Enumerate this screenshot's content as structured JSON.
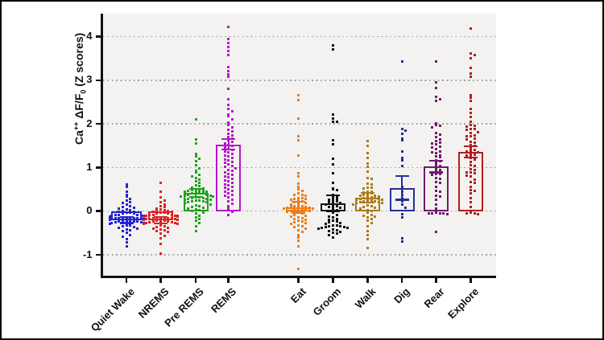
{
  "figure": {
    "background": "#ffffff",
    "border_color": "#000000",
    "plot_background": "#f4f2f0",
    "grid_color": "#9e9e9e",
    "axis_color": "#111111"
  },
  "axis": {
    "ylabel_base1": "Ca",
    "ylabel_sup": "++",
    "ylabel_base2": " ΔF/F",
    "ylabel_sub": "0",
    "ylabel_base3": " (Z scores)"
  },
  "chart_data": {
    "type": "scatter",
    "subtype": "beeswarm dot plot with mean bars and SEM error bars",
    "ylabel": "Ca++ dF/F0 (Z scores)",
    "xlabel": "",
    "title": "",
    "ylim": [
      -1.5,
      4.55
    ],
    "yticks": [
      -1,
      0,
      1,
      2,
      3,
      4
    ],
    "grid": "dotted horizontal gridlines at each integer",
    "legend": "none",
    "group_gap_after_index": 3,
    "groups": [
      {
        "label": "Quiet Wake",
        "color": "#2323d6",
        "mean": -0.2,
        "sem": 0.07,
        "points": [
          0.62,
          0.55,
          0.45,
          0.38,
          0.33,
          0.28,
          0.24,
          0.21,
          0.18,
          0.15,
          0.12,
          0.1,
          0.08,
          0.06,
          0.04,
          0.02,
          0.0,
          -0.02,
          -0.02,
          -0.04,
          -0.04,
          -0.06,
          -0.06,
          -0.08,
          -0.08,
          -0.08,
          -0.1,
          -0.1,
          -0.1,
          -0.12,
          -0.12,
          -0.12,
          -0.14,
          -0.14,
          -0.14,
          -0.16,
          -0.16,
          -0.16,
          -0.16,
          -0.18,
          -0.18,
          -0.18,
          -0.18,
          -0.2,
          -0.2,
          -0.2,
          -0.22,
          -0.22,
          -0.22,
          -0.24,
          -0.24,
          -0.24,
          -0.26,
          -0.26,
          -0.28,
          -0.28,
          -0.3,
          -0.3,
          -0.32,
          -0.32,
          -0.34,
          -0.36,
          -0.38,
          -0.4,
          -0.42,
          -0.44,
          -0.46,
          -0.5,
          -0.54,
          -0.58,
          -0.64,
          -0.72,
          -0.8
        ]
      },
      {
        "label": "NREMS",
        "color": "#dd2222",
        "mean": -0.21,
        "sem": 0.07,
        "points": [
          0.65,
          0.45,
          0.32,
          0.25,
          0.2,
          0.16,
          0.12,
          0.09,
          0.06,
          0.04,
          0.02,
          0.0,
          0.0,
          -0.02,
          -0.02,
          -0.04,
          -0.04,
          -0.06,
          -0.06,
          -0.08,
          -0.08,
          -0.08,
          -0.1,
          -0.1,
          -0.1,
          -0.12,
          -0.12,
          -0.12,
          -0.14,
          -0.14,
          -0.14,
          -0.16,
          -0.16,
          -0.16,
          -0.18,
          -0.18,
          -0.18,
          -0.2,
          -0.2,
          -0.2,
          -0.22,
          -0.22,
          -0.22,
          -0.24,
          -0.24,
          -0.26,
          -0.26,
          -0.28,
          -0.28,
          -0.3,
          -0.3,
          -0.32,
          -0.34,
          -0.36,
          -0.38,
          -0.4,
          -0.42,
          -0.44,
          -0.46,
          -0.48,
          -0.52,
          -0.56,
          -0.62,
          -0.75,
          -0.97
        ]
      },
      {
        "label": "Pre REMS",
        "color": "#21a121",
        "mean": 0.42,
        "sem": 0.09,
        "points": [
          2.1,
          1.65,
          1.55,
          1.32,
          1.25,
          1.2,
          1.15,
          1.05,
          0.98,
          0.92,
          0.88,
          0.84,
          0.8,
          0.76,
          0.72,
          0.68,
          0.64,
          0.6,
          0.57,
          0.54,
          0.52,
          0.5,
          0.48,
          0.48,
          0.46,
          0.46,
          0.44,
          0.44,
          0.42,
          0.42,
          0.4,
          0.4,
          0.38,
          0.38,
          0.36,
          0.36,
          0.34,
          0.34,
          0.32,
          0.32,
          0.3,
          0.3,
          0.28,
          0.28,
          0.26,
          0.26,
          0.24,
          0.24,
          0.22,
          0.22,
          0.2,
          0.2,
          0.18,
          0.16,
          0.14,
          0.12,
          0.1,
          0.08,
          0.06,
          0.04,
          0.02,
          0.0,
          -0.03,
          -0.06,
          -0.1,
          -0.14,
          -0.18,
          -0.22,
          -0.28,
          -0.35,
          -0.45
        ]
      },
      {
        "label": "REMS",
        "color": "#b517cf",
        "mean": 1.53,
        "sem": 0.12,
        "points": [
          4.22,
          3.94,
          3.85,
          3.76,
          3.66,
          3.57,
          3.3,
          3.2,
          3.14,
          3.08,
          2.81,
          2.56,
          2.44,
          2.35,
          2.28,
          2.22,
          2.17,
          2.1,
          2.03,
          1.97,
          1.92,
          1.87,
          1.82,
          1.78,
          1.74,
          1.7,
          1.66,
          1.62,
          1.58,
          1.55,
          1.52,
          1.49,
          1.46,
          1.43,
          1.4,
          1.37,
          1.34,
          1.31,
          1.28,
          1.25,
          1.22,
          1.19,
          1.16,
          1.13,
          1.1,
          1.07,
          1.04,
          1.01,
          0.98,
          0.95,
          0.92,
          0.89,
          0.86,
          0.83,
          0.8,
          0.77,
          0.74,
          0.71,
          0.68,
          0.65,
          0.62,
          0.59,
          0.56,
          0.53,
          0.5,
          0.47,
          0.44,
          0.41,
          0.38,
          0.35,
          0.31,
          0.27,
          0.22,
          0.17,
          0.11,
          0.05,
          -0.02,
          -0.08
        ]
      },
      {
        "label": "Eat",
        "color": "#ee7d18",
        "mean": 0.09,
        "sem": 0.12,
        "points": [
          2.65,
          2.55,
          2.13,
          1.72,
          1.62,
          1.27,
          0.87,
          0.79,
          0.63,
          0.55,
          0.5,
          0.47,
          0.4,
          0.38,
          0.38,
          0.36,
          0.3,
          0.3,
          0.28,
          0.28,
          0.26,
          0.24,
          0.22,
          0.2,
          0.18,
          0.16,
          0.14,
          0.12,
          0.12,
          0.1,
          0.1,
          0.08,
          0.08,
          0.06,
          0.06,
          0.04,
          0.04,
          0.02,
          0.02,
          0.0,
          0.0,
          -0.02,
          -0.04,
          -0.06,
          -0.08,
          -0.1,
          -0.12,
          -0.14,
          -0.16,
          -0.18,
          -0.2,
          -0.22,
          -0.24,
          -0.26,
          -0.28,
          -0.3,
          -0.32,
          -0.34,
          -0.36,
          -0.4,
          -0.44,
          -0.48,
          -0.55,
          -0.6,
          -0.68,
          -0.8,
          -1.33
        ]
      },
      {
        "label": "Groom",
        "color": "#151515",
        "mean": 0.18,
        "sem": 0.18,
        "points": [
          3.8,
          3.7,
          2.22,
          2.12,
          2.05,
          2.04,
          1.63,
          1.53,
          1.2,
          1.07,
          0.87,
          0.65,
          0.52,
          0.5,
          0.48,
          0.38,
          0.34,
          0.3,
          0.28,
          0.26,
          0.24,
          0.22,
          0.2,
          0.18,
          0.16,
          0.14,
          0.12,
          0.1,
          0.08,
          0.05,
          0.02,
          0.0,
          -0.04,
          -0.08,
          -0.12,
          -0.15,
          -0.18,
          -0.2,
          -0.22,
          -0.24,
          -0.26,
          -0.28,
          -0.3,
          -0.32,
          -0.32,
          -0.34,
          -0.34,
          -0.36,
          -0.36,
          -0.38,
          -0.38,
          -0.4,
          -0.42,
          -0.44,
          -0.46,
          -0.48,
          -0.5,
          -0.52,
          -0.55,
          -0.6
        ]
      },
      {
        "label": "Walk",
        "color": "#ab7b1e",
        "mean": 0.31,
        "sem": 0.11,
        "points": [
          1.61,
          1.49,
          1.33,
          1.22,
          1.09,
          1.01,
          0.9,
          0.75,
          0.74,
          0.63,
          0.62,
          0.53,
          0.53,
          0.52,
          0.44,
          0.44,
          0.43,
          0.42,
          0.4,
          0.38,
          0.36,
          0.35,
          0.34,
          0.33,
          0.32,
          0.3,
          0.3,
          0.28,
          0.28,
          0.26,
          0.26,
          0.24,
          0.24,
          0.22,
          0.22,
          0.2,
          0.2,
          0.18,
          0.18,
          0.16,
          0.14,
          0.12,
          0.1,
          0.08,
          0.06,
          0.03,
          0.0,
          -0.04,
          -0.08,
          -0.1,
          -0.12,
          -0.15,
          -0.18,
          -0.22,
          -0.28,
          -0.35,
          -0.45,
          -0.55,
          -0.65,
          -0.85
        ]
      },
      {
        "label": "Dig",
        "color": "#23309b",
        "mean": 0.53,
        "sem": 0.27,
        "points": [
          3.42,
          1.88,
          1.84,
          1.77,
          1.66,
          1.62,
          1.36,
          1.21,
          1.16,
          1.03,
          0.55,
          0.44,
          0.37,
          0.3,
          0.22,
          0.15,
          0.07,
          -0.07,
          -0.15,
          -0.62,
          -0.7
        ]
      },
      {
        "label": "Rear",
        "color": "#6f1a70",
        "mean": 1.02,
        "sem": 0.13,
        "points": [
          3.42,
          2.95,
          2.83,
          2.62,
          2.57,
          2.53,
          2.02,
          1.98,
          1.95,
          1.91,
          1.79,
          1.75,
          1.7,
          1.65,
          1.61,
          1.57,
          1.55,
          1.53,
          1.47,
          1.45,
          1.43,
          1.37,
          1.35,
          1.33,
          1.27,
          1.25,
          1.23,
          1.16,
          1.14,
          1.06,
          1.04,
          0.96,
          0.94,
          0.86,
          0.85,
          0.84,
          0.76,
          0.74,
          0.66,
          0.64,
          0.56,
          0.46,
          0.44,
          0.36,
          0.34,
          0.26,
          0.16,
          0.06,
          -0.04,
          -0.05,
          -0.05,
          -0.06,
          -0.06,
          -0.07,
          -0.48
        ]
      },
      {
        "label": "Explore",
        "color": "#b01e1e",
        "mean": 1.36,
        "sem": 0.13,
        "points": [
          4.19,
          3.62,
          3.58,
          3.5,
          3.28,
          3.15,
          3.08,
          2.65,
          2.6,
          2.53,
          2.35,
          2.25,
          2.15,
          2.05,
          1.98,
          1.96,
          1.94,
          1.89,
          1.88,
          1.87,
          1.81,
          1.79,
          1.73,
          1.72,
          1.71,
          1.66,
          1.64,
          1.59,
          1.57,
          1.51,
          1.49,
          1.43,
          1.41,
          1.36,
          1.35,
          1.34,
          1.29,
          1.27,
          1.21,
          1.19,
          1.13,
          1.06,
          1.04,
          0.96,
          0.94,
          0.89,
          0.88,
          0.87,
          0.81,
          0.79,
          0.72,
          0.66,
          0.64,
          0.55,
          0.49,
          0.47,
          0.4,
          0.3,
          0.2,
          0.1,
          -0.04,
          -0.05,
          -0.06,
          -0.07
        ]
      }
    ]
  }
}
